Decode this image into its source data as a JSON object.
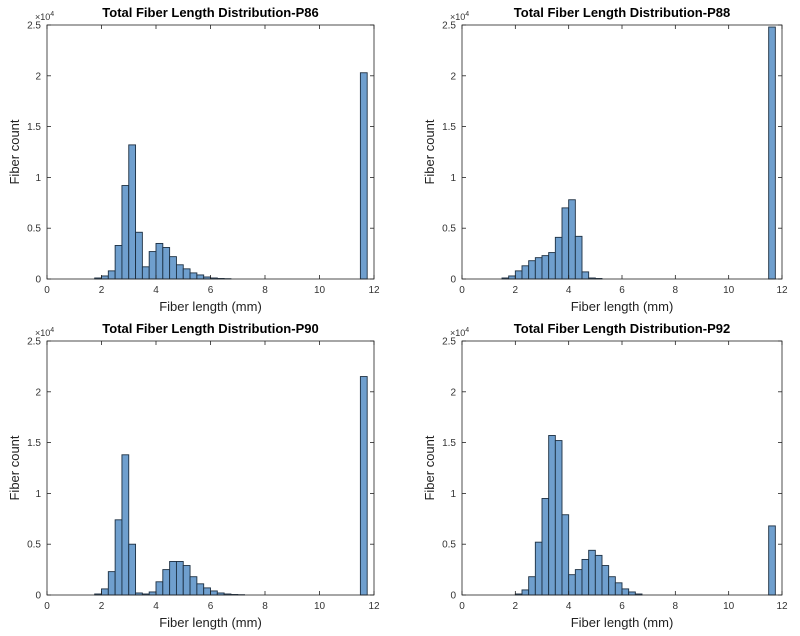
{
  "chart_data": [
    {
      "type": "bar",
      "title": "Total Fiber Length Distribution-P86",
      "xlabel": "Fiber length (mm)",
      "ylabel": "Fiber count",
      "exponent_base": "×10",
      "exponent_power": "4",
      "xlim": [
        0,
        12
      ],
      "ylim": [
        0,
        2.5
      ],
      "xticks": [
        "0",
        "2",
        "4",
        "6",
        "8",
        "10",
        "12"
      ],
      "yticks": [
        "0",
        "0.5",
        "1",
        "1.5",
        "2",
        "2.5"
      ],
      "grid": false,
      "bin_width_mm": 0.25,
      "bin_starts_mm": [
        1.75,
        2.0,
        2.25,
        2.5,
        2.75,
        3.0,
        3.25,
        3.5,
        3.75,
        4.0,
        4.25,
        4.5,
        4.75,
        5.0,
        5.25,
        5.5,
        5.75,
        6.0,
        6.25,
        6.5,
        11.5
      ],
      "values": [
        0.01,
        0.03,
        0.08,
        0.33,
        0.92,
        1.32,
        0.46,
        0.12,
        0.27,
        0.35,
        0.31,
        0.22,
        0.14,
        0.1,
        0.06,
        0.04,
        0.02,
        0.01,
        0.005,
        0.003,
        2.03
      ]
    },
    {
      "type": "bar",
      "title": "Total Fiber Length Distribution-P88",
      "xlabel": "Fiber length (mm)",
      "ylabel": "Fiber count",
      "exponent_base": "×10",
      "exponent_power": "4",
      "xlim": [
        0,
        12
      ],
      "ylim": [
        0,
        2.5
      ],
      "xticks": [
        "0",
        "2",
        "4",
        "6",
        "8",
        "10",
        "12"
      ],
      "yticks": [
        "0",
        "0.5",
        "1",
        "1.5",
        "2",
        "2.5"
      ],
      "grid": false,
      "bin_width_mm": 0.25,
      "bin_starts_mm": [
        1.5,
        1.75,
        2.0,
        2.25,
        2.5,
        2.75,
        3.0,
        3.25,
        3.5,
        3.75,
        4.0,
        4.25,
        4.5,
        4.75,
        5.0,
        11.5
      ],
      "values": [
        0.01,
        0.03,
        0.08,
        0.13,
        0.18,
        0.21,
        0.23,
        0.26,
        0.41,
        0.7,
        0.78,
        0.42,
        0.07,
        0.01,
        0.005,
        2.48
      ]
    },
    {
      "type": "bar",
      "title": "Total Fiber Length Distribution-P90",
      "xlabel": "Fiber length (mm)",
      "ylabel": "Fiber count",
      "exponent_base": "×10",
      "exponent_power": "4",
      "xlim": [
        0,
        12
      ],
      "ylim": [
        0,
        2.5
      ],
      "xticks": [
        "0",
        "2",
        "4",
        "6",
        "8",
        "10",
        "12"
      ],
      "yticks": [
        "0",
        "0.5",
        "1",
        "1.5",
        "2",
        "2.5"
      ],
      "grid": false,
      "bin_width_mm": 0.25,
      "bin_starts_mm": [
        1.75,
        2.0,
        2.25,
        2.5,
        2.75,
        3.0,
        3.25,
        3.5,
        3.75,
        4.0,
        4.25,
        4.5,
        4.75,
        5.0,
        5.25,
        5.5,
        5.75,
        6.0,
        6.25,
        6.5,
        6.75,
        7.0,
        11.5
      ],
      "values": [
        0.01,
        0.06,
        0.23,
        0.74,
        1.38,
        0.5,
        0.02,
        0.01,
        0.03,
        0.13,
        0.25,
        0.33,
        0.33,
        0.29,
        0.18,
        0.11,
        0.07,
        0.04,
        0.02,
        0.01,
        0.005,
        0.003,
        2.15
      ]
    },
    {
      "type": "bar",
      "title": "Total Fiber Length Distribution-P92",
      "xlabel": "Fiber length (mm)",
      "ylabel": "Fiber count",
      "exponent_base": "×10",
      "exponent_power": "4",
      "xlim": [
        0,
        12
      ],
      "ylim": [
        0,
        2.5
      ],
      "xticks": [
        "0",
        "2",
        "4",
        "6",
        "8",
        "10",
        "12"
      ],
      "yticks": [
        "0",
        "0.5",
        "1",
        "1.5",
        "2",
        "2.5"
      ],
      "grid": false,
      "bin_width_mm": 0.25,
      "bin_starts_mm": [
        2.0,
        2.25,
        2.5,
        2.75,
        3.0,
        3.25,
        3.5,
        3.75,
        4.0,
        4.25,
        4.5,
        4.75,
        5.0,
        5.25,
        5.5,
        5.75,
        6.0,
        6.25,
        6.5,
        11.5
      ],
      "values": [
        0.01,
        0.05,
        0.18,
        0.52,
        0.95,
        1.57,
        1.52,
        0.79,
        0.2,
        0.25,
        0.35,
        0.44,
        0.39,
        0.29,
        0.18,
        0.12,
        0.06,
        0.03,
        0.01,
        0.68
      ]
    }
  ]
}
